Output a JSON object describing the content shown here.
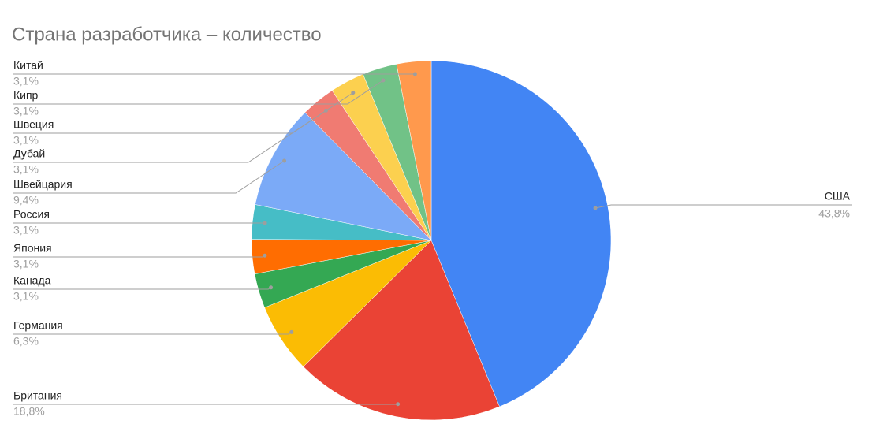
{
  "chart_data": {
    "type": "pie",
    "title": "Страна разработчика – количество",
    "categories": [
      "США",
      "Британия",
      "Германия",
      "Канада",
      "Япония",
      "Россия",
      "Швейцария",
      "Дубай",
      "Швеция",
      "Кипр",
      "Китай"
    ],
    "values": [
      43.8,
      18.8,
      6.3,
      3.1,
      3.1,
      3.1,
      9.4,
      3.1,
      3.1,
      3.1,
      3.1
    ],
    "value_labels": [
      "43,8%",
      "18,8%",
      "6,3%",
      "3,1%",
      "3,1%",
      "3,1%",
      "9,4%",
      "3,1%",
      "3,1%",
      "3,1%",
      "3,1%"
    ],
    "colors": [
      "#4285f4",
      "#ea4335",
      "#fbbc04",
      "#34a853",
      "#ff6d01",
      "#46bdc6",
      "#7baaf7",
      "#f07b72",
      "#fcd04f",
      "#71c287",
      "#ff994d"
    ]
  }
}
